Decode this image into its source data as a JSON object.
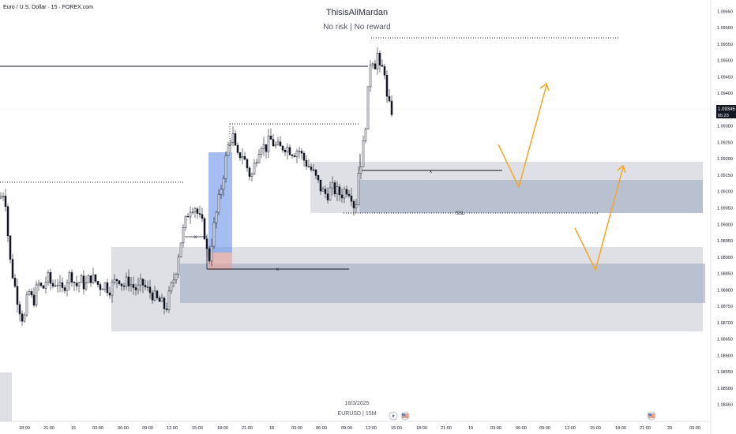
{
  "symbol_title": "Euro / U.S. Dollar · 15 · FOREX.com",
  "watermark": {
    "author": "ThisisAliMardan",
    "tagline": "No risk | No reward"
  },
  "footer": {
    "date": "18/3/2025",
    "symbol": "EURUSD | 15M"
  },
  "last_price": {
    "value": "1.09345",
    "countdown": "05:23"
  },
  "annotation_ssl": "SSL",
  "annotation_x": "x",
  "colors": {
    "background": "#ffffff",
    "zone_light": "#c8cbd3",
    "zone_mid": "#aab2c8",
    "zone_blue": "#5b86e5",
    "zone_red": "#e3a6a2",
    "arrow": "#f5a623",
    "candle": "#131722",
    "price_badge": "#131722"
  },
  "icons": [
    "lightning-icon",
    "us-flag-icon"
  ],
  "chart_data": {
    "type": "candlestick",
    "title": "Euro / U.S. Dollar · 15 · FOREX.com",
    "y_ticks": [
      "1.09650",
      "1.09600",
      "1.09550",
      "1.09500",
      "1.09450",
      "1.09400",
      "1.09350",
      "1.09300",
      "1.09250",
      "1.09200",
      "1.09150",
      "1.09100",
      "1.09050",
      "1.09000",
      "1.08950",
      "1.08900",
      "1.08850",
      "1.08800",
      "1.08750",
      "1.08700",
      "1.08650",
      "1.08600",
      "1.08550",
      "1.08500",
      "1.08450"
    ],
    "ylim": [
      1.0843,
      1.0967
    ],
    "x_ticks": [
      "18:00",
      "21:00",
      "15",
      "03:00",
      "06:00",
      "09:00",
      "12:00",
      "15:00",
      "18:00",
      "21:00",
      "18",
      "03:00",
      "06:00",
      "09:00",
      "12:00",
      "15:00",
      "18:00",
      "21:00",
      "19",
      "03:00",
      "06:00",
      "09:00",
      "12:00",
      "15:00",
      "18:00",
      "21:00",
      "20",
      "03:00"
    ],
    "price_path": [
      [
        0,
        1.0908
      ],
      [
        6,
        1.09105
      ],
      [
        12,
        1.089
      ],
      [
        18,
        1.0882
      ],
      [
        24,
        1.0875
      ],
      [
        30,
        1.087
      ],
      [
        36,
        1.088
      ],
      [
        42,
        1.0876
      ],
      [
        48,
        1.0882
      ],
      [
        54,
        1.088
      ],
      [
        60,
        1.0884
      ],
      [
        66,
        1.0881
      ],
      [
        72,
        1.0883
      ],
      [
        78,
        1.0879
      ],
      [
        84,
        1.0883
      ],
      [
        90,
        1.0885
      ],
      [
        96,
        1.0881
      ],
      [
        102,
        1.0883
      ],
      [
        108,
        1.0881
      ],
      [
        114,
        1.0884
      ],
      [
        120,
        1.0883
      ],
      [
        126,
        1.0881
      ],
      [
        132,
        1.0882
      ],
      [
        138,
        1.088
      ],
      [
        144,
        1.0882
      ],
      [
        150,
        1.0884
      ],
      [
        156,
        1.0881
      ],
      [
        162,
        1.0883
      ],
      [
        168,
        1.0881
      ],
      [
        174,
        1.088
      ],
      [
        180,
        1.0882
      ],
      [
        186,
        1.088
      ],
      [
        192,
        1.0879
      ],
      [
        198,
        1.0877
      ],
      [
        204,
        1.0876
      ],
      [
        210,
        1.0874
      ],
      [
        216,
        1.088
      ],
      [
        222,
        1.0885
      ],
      [
        228,
        1.0894
      ],
      [
        234,
        1.09
      ],
      [
        240,
        1.0905
      ],
      [
        246,
        1.0906
      ],
      [
        252,
        1.0902
      ],
      [
        258,
        1.0899
      ],
      [
        264,
        1.0888
      ],
      [
        270,
        1.0898
      ],
      [
        276,
        1.0906
      ],
      [
        282,
        1.0914
      ],
      [
        288,
        1.0923
      ],
      [
        294,
        1.0928
      ],
      [
        300,
        1.092
      ],
      [
        306,
        1.0922
      ],
      [
        312,
        1.0918
      ],
      [
        318,
        1.0914
      ],
      [
        324,
        1.092
      ],
      [
        330,
        1.0925
      ],
      [
        336,
        1.0923
      ],
      [
        342,
        1.0926
      ],
      [
        348,
        1.0924
      ],
      [
        354,
        1.0923
      ],
      [
        360,
        1.0924
      ],
      [
        366,
        1.0923
      ],
      [
        372,
        1.0922
      ],
      [
        378,
        1.0923
      ],
      [
        384,
        1.092
      ],
      [
        390,
        1.0918
      ],
      [
        396,
        1.0916
      ],
      [
        402,
        1.0913
      ],
      [
        408,
        1.091
      ],
      [
        414,
        1.0909
      ],
      [
        420,
        1.0911
      ],
      [
        426,
        1.091
      ],
      [
        432,
        1.0909
      ],
      [
        438,
        1.0911
      ],
      [
        444,
        1.091
      ],
      [
        450,
        1.0904
      ],
      [
        454,
        1.0916
      ],
      [
        458,
        1.092
      ],
      [
        462,
        1.0928
      ],
      [
        466,
        1.094
      ],
      [
        470,
        1.0953
      ],
      [
        474,
        1.0948
      ],
      [
        478,
        1.0952
      ],
      [
        482,
        1.0945
      ],
      [
        486,
        1.095
      ],
      [
        490,
        1.0938
      ],
      [
        494,
        1.0935
      ],
      [
        498,
        1.09345
      ]
    ],
    "levels": [
      {
        "name": "prior-high",
        "price": 1.0947,
        "style": "solid"
      },
      {
        "name": "prior-high-dotted",
        "price": 1.0912,
        "style": "dotted"
      },
      {
        "name": "swing-high",
        "price": 1.09295,
        "style": "dotted"
      },
      {
        "name": "top-high",
        "price": 1.0955,
        "style": "dotted"
      },
      {
        "name": "ssl",
        "price": 1.0904,
        "style": "dotted"
      },
      {
        "name": "x-upper",
        "price": 1.09165,
        "style": "solid"
      },
      {
        "name": "x-lower",
        "price": 1.08875,
        "style": "solid"
      }
    ]
  }
}
